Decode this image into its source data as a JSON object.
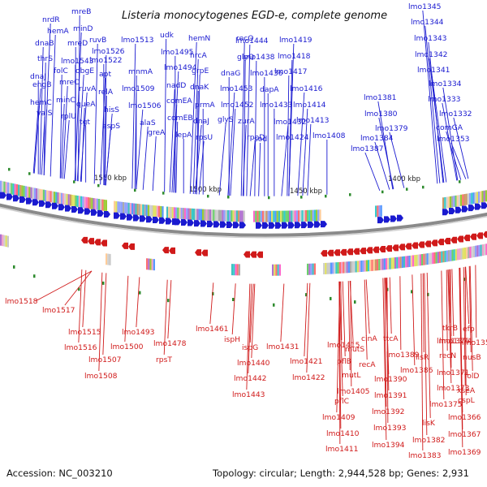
{
  "title": "Listeria monocytogenes EGD-e, complete genome",
  "footer": {
    "accession": "Accession: NC_003210",
    "summary": "Topology: circular; Length: 2,944,528 bp; Genes: 2,931"
  },
  "ticks": [
    "1550 kbp",
    "1500 kbp",
    "1450 kbp",
    "1400 kbp"
  ],
  "colors": {
    "forward": "#1a1ad0",
    "reverse": "#d01a1a",
    "backbone": "#8c8c8c",
    "marker": "#2e8b2e"
  },
  "forward_labels": [
    "nrdR",
    "hemA",
    "dnaB",
    "thrS",
    "dnaJ",
    "engB",
    "hemC",
    "valS",
    "mreB",
    "mreD",
    "minD",
    "mreC",
    "minC",
    "folC",
    "lmo1543",
    "obgE",
    "rplU",
    "ruvB",
    "lmo1526",
    "lmo1522",
    "ruvA",
    "apt",
    "queA",
    "relA",
    "tgt",
    "hisS",
    "aspS",
    "lmo1513",
    "mnmA",
    "lmo1509",
    "lmo1506",
    "alaS",
    "greA",
    "udk",
    "lmo1495",
    "lmo1494",
    "nadD",
    "comEA",
    "comEB",
    "lepA",
    "hemN",
    "hrcA",
    "grpE",
    "dnaK",
    "prmA",
    "dnaJ",
    "rpsU",
    "recO",
    "glyQ",
    "dnaG",
    "glyS",
    "rpoD",
    "lmo1444",
    "lmo1438",
    "lmo1436",
    "lmo1453",
    "lmo1452",
    "zurA",
    "sod",
    "lmo1433",
    "lmo1432",
    "lmo1419",
    "lmo1418",
    "lmo1417",
    "dapA",
    "lmo1416",
    "lmo1414",
    "lmo1413",
    "lmo1424",
    "lmo1408",
    "lmo1381",
    "lmo1380",
    "lmo1379",
    "lmo1384",
    "lmo1387",
    "lmo1345",
    "lmo1344",
    "lmo1343",
    "lmo1342",
    "lmo1341",
    "lmo1334",
    "lmo1333",
    "lmo1332",
    "comGA",
    "lmo1353"
  ],
  "reverse_labels": [
    "lmo1518",
    "lmo1517",
    "lmo1515",
    "lmo1516",
    "lmo1507",
    "lmo1508",
    "lmo1493",
    "lmo1500",
    "lmo1478",
    "rpsT",
    "lmo1461",
    "ispH",
    "ispG",
    "lmo1440",
    "lmo1442",
    "lmo1443",
    "lmo1431",
    "lmo1421",
    "lmo1422",
    "lmo1415",
    "mutS",
    "pflB",
    "mutL",
    "lmo1405",
    "pflC",
    "lmo1409",
    "lmo1410",
    "lmo1411",
    "cinA",
    "recA",
    "ttcA",
    "lmo1389",
    "lmo1390",
    "lmo1391",
    "lmo1392",
    "lmo1393",
    "lmo1394",
    "lmo1386",
    "lmo1374",
    "lisR",
    "lisK",
    "lmo1382",
    "lmo1383",
    "lmo1371",
    "lmo1373",
    "lmo1375",
    "lmo1376",
    "recN",
    "lmo1369",
    "tkrB",
    "nusB",
    "lmo1358",
    "efp",
    "folD",
    "xseA",
    "cspL",
    "lmo1366",
    "lmo1367"
  ]
}
